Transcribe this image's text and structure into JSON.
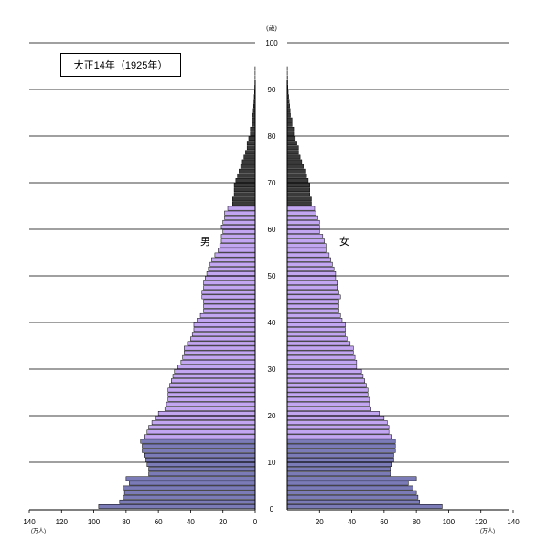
{
  "chart_data": {
    "type": "bar",
    "orientation": "population-pyramid",
    "title": "大正14年（1925年）",
    "age_axis_unit": "(歳)",
    "value_axis_unit": "(万人)",
    "age_ticks": [
      0,
      10,
      20,
      30,
      40,
      50,
      60,
      70,
      80,
      90,
      100
    ],
    "value_ticks": [
      140,
      120,
      100,
      80,
      60,
      40,
      20,
      0,
      20,
      40,
      60,
      80,
      100,
      120,
      140
    ],
    "xlim": [
      0,
      140
    ],
    "ylim": [
      0,
      100
    ],
    "grid": true,
    "male_label": "男",
    "female_label": "女",
    "colors": {
      "young": "#7b7bb8",
      "working": "#c3a6f2",
      "old": "#3a3a3a",
      "edge": "#000000",
      "grid": "#000000"
    },
    "age_groups": {
      "young_max_age": 14,
      "old_min_age": 65
    },
    "ages": [
      0,
      1,
      2,
      3,
      4,
      5,
      6,
      7,
      8,
      9,
      10,
      11,
      12,
      13,
      14,
      15,
      16,
      17,
      18,
      19,
      20,
      21,
      22,
      23,
      24,
      25,
      26,
      27,
      28,
      29,
      30,
      31,
      32,
      33,
      34,
      35,
      36,
      37,
      38,
      39,
      40,
      41,
      42,
      43,
      44,
      45,
      46,
      47,
      48,
      49,
      50,
      51,
      52,
      53,
      54,
      55,
      56,
      57,
      58,
      59,
      60,
      61,
      62,
      63,
      64,
      65,
      66,
      67,
      68,
      69,
      70,
      71,
      72,
      73,
      74,
      75,
      76,
      77,
      78,
      79,
      80,
      81,
      82,
      83,
      84,
      85,
      86,
      87,
      88,
      89,
      90,
      91,
      92,
      93,
      94,
      95,
      96,
      97,
      98,
      99
    ],
    "series": [
      {
        "name": "男",
        "values": [
          97,
          84,
          82,
          81,
          82,
          78,
          80,
          66,
          66,
          67,
          68,
          69,
          70,
          70,
          71,
          69,
          67,
          66,
          64,
          62,
          60,
          56,
          55,
          54,
          54,
          54,
          53,
          52,
          51,
          50,
          48,
          46,
          45,
          44,
          44,
          42,
          40,
          39,
          38,
          38,
          36,
          34,
          32,
          32,
          32,
          33,
          33,
          32,
          32,
          31,
          30,
          29,
          28,
          27,
          25,
          23,
          22,
          21,
          21,
          20,
          21,
          20,
          19,
          19,
          17,
          14,
          14,
          13,
          13,
          13,
          12,
          11,
          10,
          9,
          8,
          7,
          6,
          5,
          5,
          4,
          3,
          3,
          2,
          2,
          1.5,
          1.2,
          1,
          0.8,
          0.6,
          0.4,
          0.3,
          0.2,
          0.1,
          0.1,
          0.1,
          0,
          0,
          0,
          0,
          0
        ]
      },
      {
        "name": "女",
        "values": [
          96,
          82,
          81,
          80,
          78,
          75,
          80,
          64,
          64,
          65,
          66,
          66,
          67,
          67,
          67,
          65,
          63,
          63,
          62,
          60,
          57,
          52,
          51,
          51,
          50,
          50,
          49,
          48,
          47,
          46,
          43,
          43,
          42,
          41,
          41,
          39,
          37,
          36,
          36,
          36,
          34,
          33,
          32,
          32,
          32,
          33,
          32,
          31,
          31,
          30,
          30,
          29,
          28,
          27,
          26,
          24,
          24,
          23,
          22,
          20,
          20,
          20,
          19,
          18,
          17,
          15,
          15,
          14,
          14,
          14,
          13,
          12,
          11,
          10,
          9,
          8,
          7,
          7,
          6,
          5,
          4,
          4,
          3,
          3,
          2,
          1.8,
          1.5,
          1.2,
          0.9,
          0.6,
          0.4,
          0.3,
          0.2,
          0.1,
          0.1,
          0,
          0,
          0,
          0,
          0
        ]
      }
    ]
  }
}
